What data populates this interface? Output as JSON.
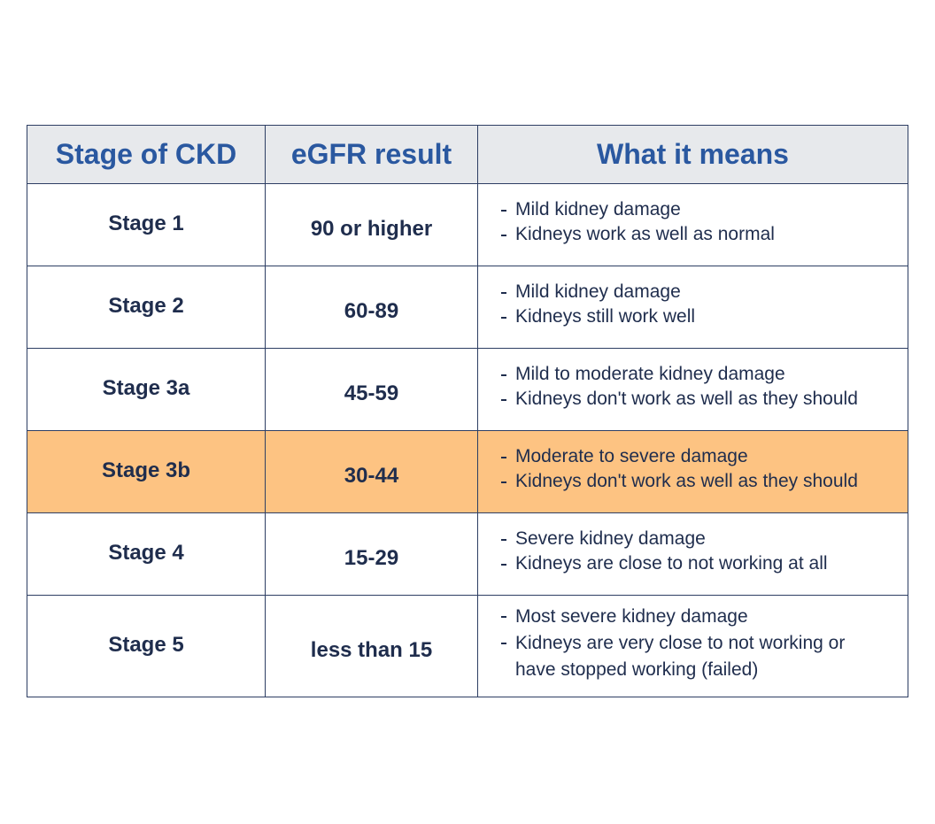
{
  "table": {
    "headers": [
      "Stage of CKD",
      "eGFR result",
      "What it means"
    ],
    "rows": [
      {
        "stage": "Stage 1",
        "egfr": "90 or higher",
        "means": [
          "Mild kidney damage",
          "Kidneys work as well as normal"
        ]
      },
      {
        "stage": "Stage 2",
        "egfr": "60-89",
        "means": [
          "Mild kidney damage",
          "Kidneys still work well"
        ]
      },
      {
        "stage": "Stage 3a",
        "egfr": "45-59",
        "means": [
          "Mild to moderate kidney damage",
          "Kidneys don't work as well as they should"
        ]
      },
      {
        "stage": "Stage 3b",
        "egfr": "30-44",
        "means": [
          "Moderate to severe damage",
          "Kidneys don't work as well as they should"
        ]
      },
      {
        "stage": "Stage 4",
        "egfr": "15-29",
        "means": [
          "Severe kidney damage",
          "Kidneys are close to not working at all"
        ]
      },
      {
        "stage": "Stage 5",
        "egfr": "less than 15",
        "means": [
          "Most severe kidney damage",
          "Kidneys are very close to not working or have stopped working (failed)"
        ]
      }
    ]
  }
}
